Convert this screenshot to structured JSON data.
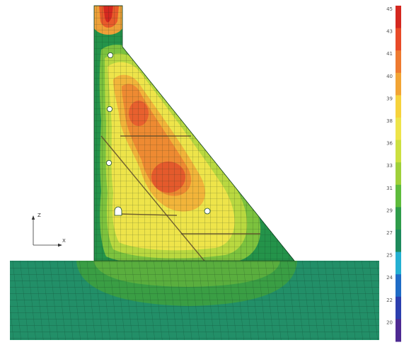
{
  "figure": {
    "axis_triad": {
      "vertical_label": "Z",
      "horizontal_label": "X"
    },
    "openings_count": 5
  },
  "legend": {
    "ticks": [
      "45",
      "43",
      "41",
      "40",
      "39",
      "38",
      "36",
      "33",
      "31",
      "29",
      "27",
      "25",
      "24",
      "22",
      "20"
    ],
    "colors": [
      "#d42820",
      "#e84a28",
      "#ee7a30",
      "#f2a434",
      "#f6d23c",
      "#eee44a",
      "#cce040",
      "#9fd03a",
      "#5ebc3c",
      "#2f9c4a",
      "#1e8a5c",
      "#24b0d2",
      "#1f6cc6",
      "#2c3fae",
      "#4e2a92"
    ]
  },
  "colors": {
    "foundation": "#228f68",
    "dam_outer": "#24934a",
    "mesh": "#0a2a18"
  }
}
